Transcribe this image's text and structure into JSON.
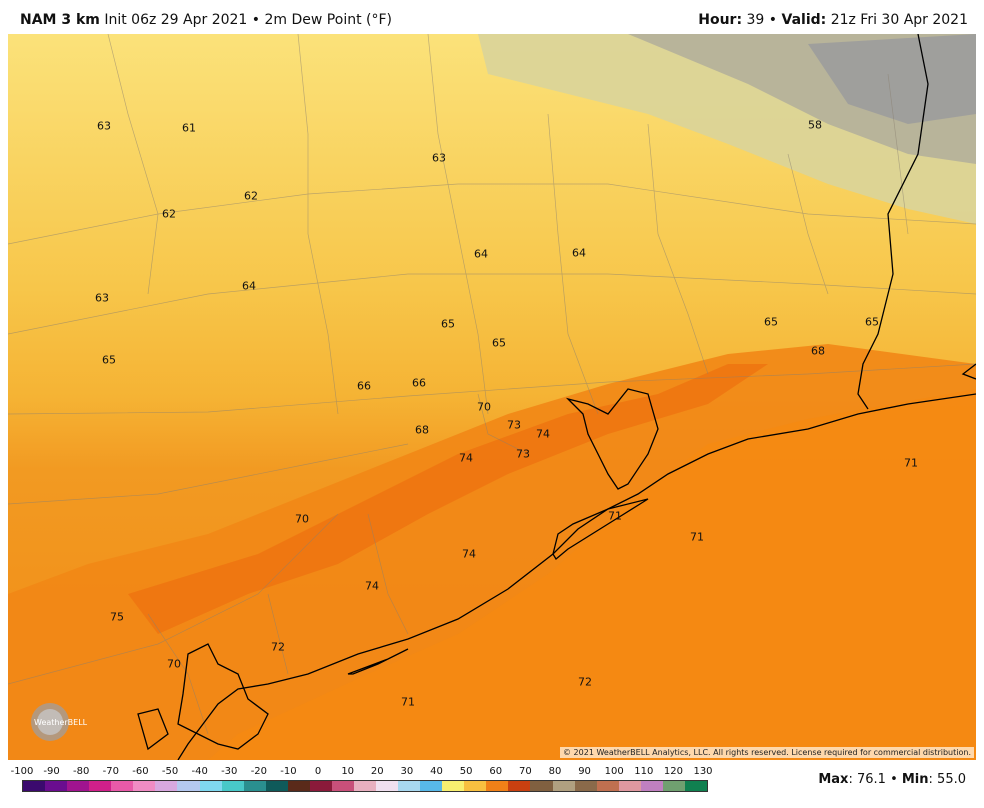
{
  "header": {
    "model": "NAM 3 km",
    "init": "Init 06z 29 Apr 2021",
    "separator": "•",
    "field": "2m Dew Point (°F)",
    "hour_label": "Hour:",
    "hour_value": "39",
    "valid_label": "Valid:",
    "valid_value": "21z Fri 30 Apr 2021"
  },
  "map_values": [
    {
      "v": "63"
    },
    {
      "v": "61"
    },
    {
      "v": "63"
    },
    {
      "v": "58"
    },
    {
      "v": "62"
    },
    {
      "v": "62"
    },
    {
      "v": "64"
    },
    {
      "v": "64"
    },
    {
      "v": "63"
    },
    {
      "v": "64"
    },
    {
      "v": "65"
    },
    {
      "v": "65"
    },
    {
      "v": "65"
    },
    {
      "v": "65"
    },
    {
      "v": "65"
    },
    {
      "v": "68"
    },
    {
      "v": "66"
    },
    {
      "v": "66"
    },
    {
      "v": "70"
    },
    {
      "v": "73"
    },
    {
      "v": "74"
    },
    {
      "v": "68"
    },
    {
      "v": "74"
    },
    {
      "v": "73"
    },
    {
      "v": "71"
    },
    {
      "v": "71"
    },
    {
      "v": "71"
    },
    {
      "v": "70"
    },
    {
      "v": "74"
    },
    {
      "v": "74"
    },
    {
      "v": "75"
    },
    {
      "v": "72"
    },
    {
      "v": "70"
    },
    {
      "v": "72"
    },
    {
      "v": "71"
    }
  ],
  "copyright": "© 2021 WeatherBELL Analytics, LLC. All rights reserved. License required for commercial distribution.",
  "logo_text": "WeatherBELL",
  "colorbar": {
    "ticks": [
      "-100",
      "-90",
      "-80",
      "-70",
      "-60",
      "-50",
      "-40",
      "-30",
      "-20",
      "-10",
      "0",
      "10",
      "20",
      "30",
      "40",
      "50",
      "60",
      "70",
      "80",
      "90",
      "100",
      "110",
      "120",
      "130"
    ],
    "colors": [
      "#3b0a6e",
      "#6a0d8f",
      "#a0148f",
      "#d0208a",
      "#e85aa8",
      "#f08cc4",
      "#d8a8e0",
      "#b4c8f0",
      "#7fd8f0",
      "#48c8c8",
      "#2a8f8f",
      "#0f5a5a",
      "#5a2a1a",
      "#8a1a3a",
      "#c8507a",
      "#e8b0c0",
      "#f0e0f0",
      "#a8d8f0",
      "#58b8e8",
      "#f8f070",
      "#f8c040",
      "#f08018",
      "#c84010",
      "#806040",
      "#b0a080",
      "#8a6a4a",
      "#c07050",
      "#e098a0",
      "#c080c0",
      "#70a070",
      "#108050"
    ]
  },
  "stats": {
    "max_label": "Max",
    "max_value": ": 76.1",
    "sep": "•",
    "min_label": "Min",
    "min_value": ": 55.0"
  },
  "colors": {
    "low_dew": "#9a9a9a",
    "mid_dew": "#f5d24a",
    "high_dew": "#f08a1a",
    "coastline": "#000000",
    "county_lines": "#9a8f80"
  }
}
